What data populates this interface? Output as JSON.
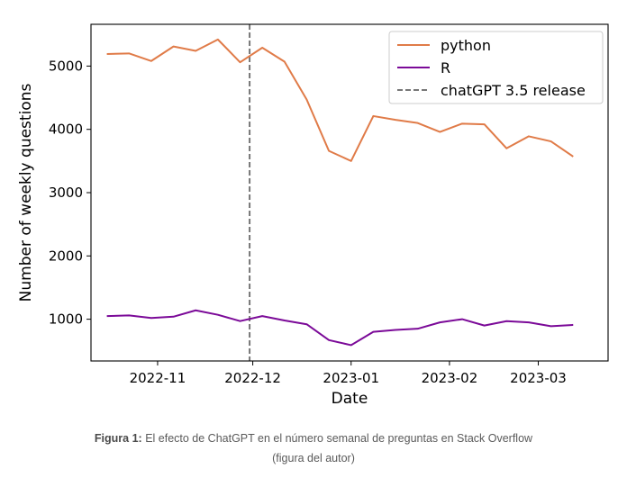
{
  "chart_data": {
    "type": "line",
    "title": "",
    "xlabel": "Date",
    "ylabel": "Number of weekly questions",
    "x_tick_labels": [
      "2022-11",
      "2022-12",
      "2023-01",
      "2023-02",
      "2023-03"
    ],
    "x_tick_dates": [
      "2022-11-01",
      "2022-12-01",
      "2023-01-01",
      "2023-02-01",
      "2023-03-01"
    ],
    "y_ticks": [
      1000,
      2000,
      3000,
      4000,
      5000
    ],
    "xlim": [
      "2022-10-11",
      "2023-03-23"
    ],
    "ylim": [
      340,
      5660
    ],
    "grid": false,
    "legend_position": "top-right",
    "x": [
      "2022-10-16",
      "2022-10-23",
      "2022-10-30",
      "2022-11-06",
      "2022-11-13",
      "2022-11-20",
      "2022-11-27",
      "2022-12-04",
      "2022-12-11",
      "2022-12-18",
      "2022-12-25",
      "2023-01-01",
      "2023-01-08",
      "2023-01-15",
      "2023-01-22",
      "2023-01-29",
      "2023-02-05",
      "2023-02-12",
      "2023-02-19",
      "2023-02-26",
      "2023-03-05",
      "2023-03-12"
    ],
    "series": [
      {
        "name": "python",
        "color": "#e07b48",
        "values": [
          5190,
          5200,
          5080,
          5310,
          5240,
          5420,
          5060,
          5290,
          5070,
          4470,
          3660,
          3500,
          4210,
          4150,
          4100,
          3960,
          4090,
          4080,
          3700,
          3890,
          3810,
          3570
        ]
      },
      {
        "name": "R",
        "color": "#7b0a98",
        "values": [
          1050,
          1060,
          1020,
          1040,
          1140,
          1070,
          970,
          1050,
          980,
          920,
          670,
          590,
          800,
          830,
          850,
          950,
          1000,
          900,
          970,
          950,
          890,
          910
        ]
      }
    ],
    "annotation": {
      "label": "chatGPT 3.5 release",
      "date": "2022-11-30",
      "color": "#777777",
      "style": "dashed"
    }
  },
  "caption": {
    "prefix": "Figura 1:",
    "text": " El efecto de ChatGPT en el número semanal de preguntas en Stack Overflow (figura del autor)"
  }
}
